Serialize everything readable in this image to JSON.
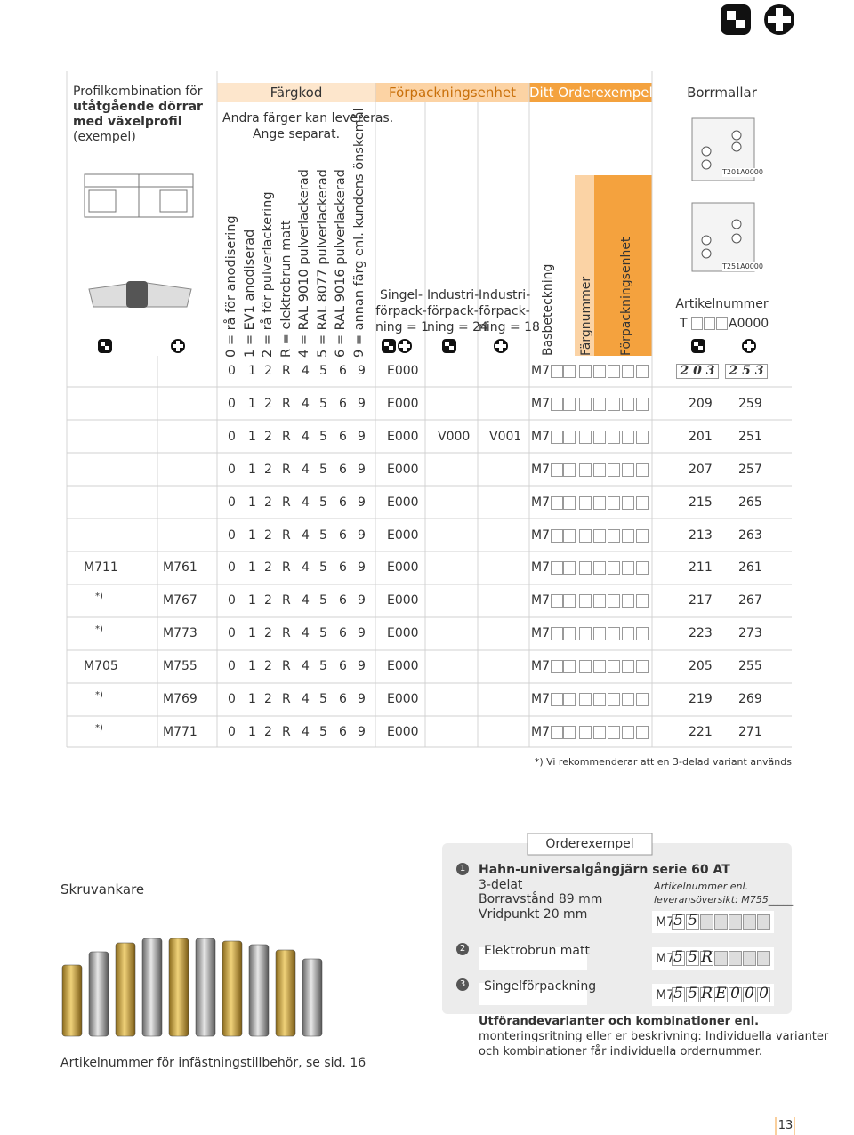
{
  "header": {
    "profile": [
      "Profilkombination för",
      "utåtgående dörrar",
      "med växelprofil",
      "(exempel)"
    ],
    "color_code": "Färgkod",
    "packaging": "Förpackningsenhet",
    "order_example": "Ditt Orderexempel",
    "drill_templates": "Borrmallar",
    "other_colors": [
      "Andra färger kan levereras.",
      "Ange separat."
    ]
  },
  "color_legend": [
    "0 = rå för anodisering",
    "1 = EV1 anodiserad",
    "2 = rå för pulverlackering",
    "R = elektrobrun matt",
    "4 = RAL 9010 pulverlackerad",
    "5 = RAL 8077 pulverlackerad",
    "6 = RAL 9016 pulverlackerad",
    "9 = annan färg enl. kundens önskemål"
  ],
  "packaging_options": [
    [
      "Singel-",
      "förpack-",
      "ning = 1"
    ],
    [
      "Industri-",
      "förpack-",
      "ning = 24"
    ],
    [
      "Industri-",
      "förpack-",
      "ning = 18"
    ]
  ],
  "order_columns": [
    "Basbeteckning",
    "Färgnummer",
    "Förpackningsenhet"
  ],
  "drill": {
    "templates": [
      "T201A0000",
      "T251A0000"
    ],
    "article_label": "Artikelnummer",
    "prefix": "T",
    "suffix": "A0000"
  },
  "code_digits": [
    "0",
    "1",
    "2",
    "R",
    "4",
    "5",
    "6",
    "9"
  ],
  "rows": [
    {
      "single": "E000",
      "base": "M7",
      "article_1": "2 0 3",
      "article_2": "2 5 3"
    },
    {
      "single": "E000",
      "base": "M7",
      "article_1": "209",
      "article_2": "259"
    },
    {
      "single": "E000",
      "industry_24": "V000",
      "industry_18": "V001",
      "base": "M7",
      "article_1": "201",
      "article_2": "251"
    },
    {
      "single": "E000",
      "base": "M7",
      "article_1": "207",
      "article_2": "257"
    },
    {
      "single": "E000",
      "base": "M7",
      "article_1": "215",
      "article_2": "265"
    },
    {
      "single": "E000",
      "base": "M7",
      "article_1": "213",
      "article_2": "263"
    },
    {
      "profile_a": "M711",
      "profile_b": "M761",
      "single": "E000",
      "base": "M7",
      "article_1": "211",
      "article_2": "261"
    },
    {
      "profile_a": "*)",
      "profile_b": "M767",
      "single": "E000",
      "base": "M7",
      "article_1": "217",
      "article_2": "267"
    },
    {
      "profile_a": "*)",
      "profile_b": "M773",
      "single": "E000",
      "base": "M7",
      "article_1": "223",
      "article_2": "273"
    },
    {
      "profile_a": "M705",
      "profile_b": "M755",
      "single": "E000",
      "base": "M7",
      "article_1": "205",
      "article_2": "255"
    },
    {
      "profile_a": "*)",
      "profile_b": "M769",
      "single": "E000",
      "base": "M7",
      "article_1": "219",
      "article_2": "269"
    },
    {
      "profile_a": "*)",
      "profile_b": "M771",
      "single": "E000",
      "base": "M7",
      "article_1": "221",
      "article_2": "271"
    }
  ],
  "footnote": "*) Vi rekommenderar att en 3-delad variant används",
  "accessory": {
    "title": "Skruvankare",
    "note": "Artikelnummer för infästningstillbehör, se sid. 16"
  },
  "example": {
    "title": "Orderexempel",
    "steps": [
      {
        "number": "1",
        "lines": [
          "Hahn-universalgångjärn serie 60 AT",
          "3-delat",
          "Borravstånd 89 mm",
          "Vridpunkt 20 mm"
        ],
        "code": [
          "5",
          "5"
        ]
      },
      {
        "number": "2",
        "lines": [
          "Elektrobrun matt"
        ],
        "code": [
          "5",
          "5",
          "R"
        ]
      },
      {
        "number": "3",
        "lines": [
          "Singelförpackning"
        ],
        "code": [
          "5",
          "5",
          "R",
          "E",
          "0",
          "0",
          "0"
        ]
      }
    ],
    "article_ref": [
      "Artikelnummer enl.",
      "leveransöversikt: M755_____"
    ],
    "prefix": "M7",
    "closing": [
      "Utförandevarianter och kombinationer enl.",
      "monteringsritning eller er beskrivning: Individuella varianter",
      "och kombinationer får individuella ordernummer."
    ]
  },
  "page_number": "13"
}
